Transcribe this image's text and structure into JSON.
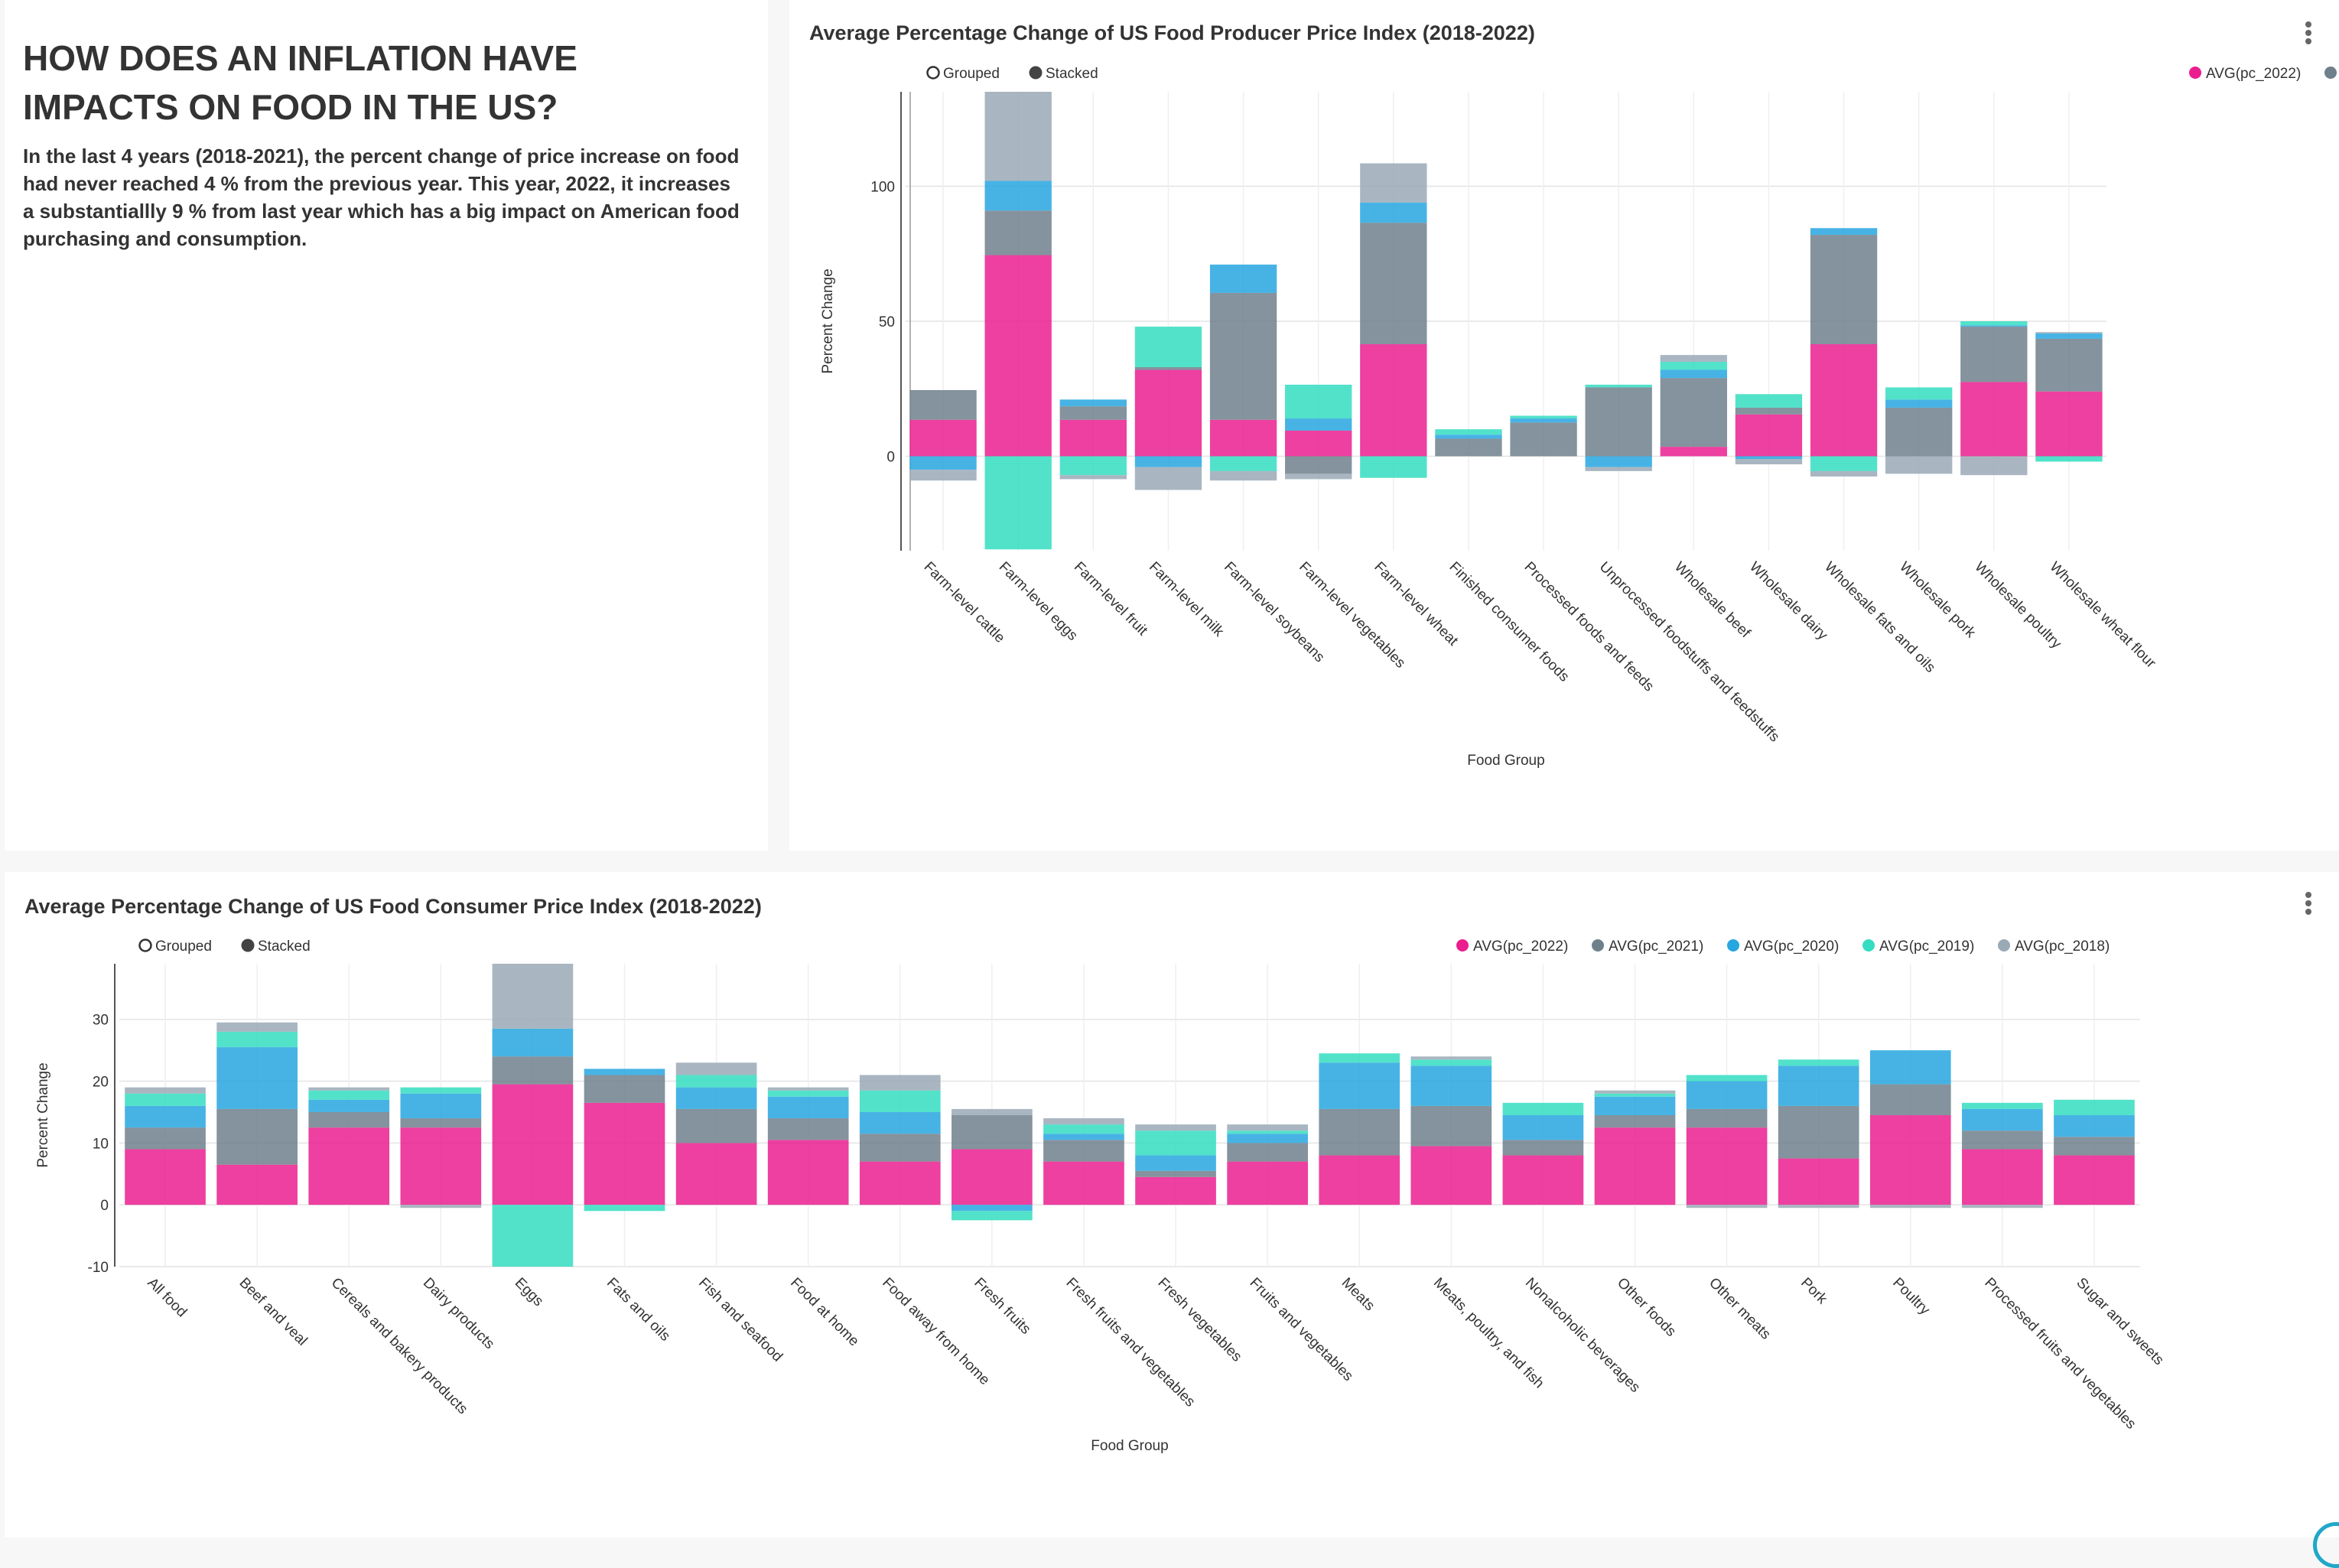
{
  "text_panel": {
    "headline": "HOW DOES AN INFLATION HAVE IMPACTS ON FOOD IN THE US?",
    "body": "In the last 4 years (2018-2021), the percent change of price increase on food had never reached 4 % from the previous year. This year, 2022, it increases a substantiallly 9 % from last year which has a big impact on American food purchasing and consumption."
  },
  "controls": {
    "grouped_label": "Grouped",
    "stacked_label": "Stacked",
    "selected": "Stacked"
  },
  "colors": {
    "pc_2022": "#ea1e8f",
    "pc_2021": "#6e808c",
    "pc_2020": "#27a6e0",
    "pc_2019": "#34ddc1",
    "pc_2018": "#9aa9b6"
  },
  "chart_data": [
    {
      "type": "bar",
      "stacked": true,
      "title": "Average Percentage Change of US Food Producer Price Index (2018-2022)",
      "xlabel": "Food Group",
      "ylabel": "Percent Change",
      "ylim": [
        -35,
        135
      ],
      "yticks": [
        0,
        50,
        100
      ],
      "grid": true,
      "legend_position": "top-right",
      "categories": [
        "Farm-level cattle",
        "Farm-level eggs",
        "Farm-level fruit",
        "Farm-level milk",
        "Farm-level soybeans",
        "Farm-level vegetables",
        "Farm-level wheat",
        "Finished consumer foods",
        "Processed foods and feeds",
        "Unprocessed foodstuffs and feedstuffs",
        "Wholesale beef",
        "Wholesale dairy",
        "Wholesale fats and oils",
        "Wholesale pork",
        "Wholesale poultry",
        "Wholesale wheat flour"
      ],
      "series": [
        {
          "name": "AVG(pc_2022)",
          "key": "pc_2022",
          "values": [
            13.5,
            74.5,
            13.5,
            32,
            13.5,
            9.5,
            41.5,
            0,
            0,
            0,
            3.5,
            15.5,
            41.5,
            0,
            27.5,
            24
          ]
        },
        {
          "name": "AVG(pc_2021)",
          "key": "pc_2021",
          "values": [
            11,
            16.5,
            5,
            1,
            47,
            -6.5,
            45,
            6.5,
            12.5,
            25.5,
            25.5,
            2.5,
            40.5,
            18,
            20.5,
            19.5
          ]
        },
        {
          "name": "AVG(pc_2020)",
          "key": "pc_2020",
          "values": [
            -5,
            11,
            2.5,
            -4,
            10.5,
            4.5,
            7.5,
            1.5,
            1.5,
            -4,
            3,
            -1,
            2.5,
            3,
            0.5,
            2
          ]
        },
        {
          "name": "AVG(pc_2019)",
          "key": "pc_2019",
          "values": [
            0,
            -34.5,
            -7,
            15,
            -5.5,
            12.5,
            -8,
            2,
            1,
            1,
            3,
            5,
            -5.5,
            4.5,
            1.5,
            -2
          ]
        },
        {
          "name": "AVG(pc_2018)",
          "key": "pc_2018",
          "values": [
            -4,
            36.5,
            -1.5,
            -8.5,
            -3.5,
            -2,
            14.5,
            0,
            0,
            -1.5,
            2.5,
            -2,
            -2,
            -6.5,
            -7,
            0.5
          ]
        }
      ]
    },
    {
      "type": "bar",
      "stacked": true,
      "title": "Average Percentage Change of US Food Consumer Price Index (2018-2022)",
      "xlabel": "Food Group",
      "ylabel": "Percent Change",
      "ylim": [
        -10,
        39
      ],
      "yticks": [
        -10,
        0,
        10,
        20,
        30
      ],
      "grid": true,
      "legend_position": "top-right",
      "categories": [
        "All food",
        "Beef and veal",
        "Cereals and bakery products",
        "Dairy products",
        "Eggs",
        "Fats and oils",
        "Fish and seafood",
        "Food at home",
        "Food away from home",
        "Fresh fruits",
        "Fresh fruits and vegetables",
        "Fresh vegetables",
        "Fruits and vegetables",
        "Meats",
        "Meats, poultry, and fish",
        "Nonalcoholic beverages",
        "Other foods",
        "Other meats",
        "Pork",
        "Poultry",
        "Processed fruits and vegetables",
        "Sugar and sweets"
      ],
      "series": [
        {
          "name": "AVG(pc_2022)",
          "key": "pc_2022",
          "values": [
            9,
            6.5,
            12.5,
            12.5,
            19.5,
            16.5,
            10,
            10.5,
            7,
            9,
            7,
            4.5,
            7,
            8,
            9.5,
            8,
            12.5,
            12.5,
            7.5,
            14.5,
            9,
            8
          ]
        },
        {
          "name": "AVG(pc_2021)",
          "key": "pc_2021",
          "values": [
            3.5,
            9,
            2.5,
            1.5,
            4.5,
            4.5,
            5.5,
            3.5,
            4.5,
            5.5,
            3.5,
            1,
            3,
            7.5,
            6.5,
            2.5,
            2,
            3,
            8.5,
            5,
            3,
            3
          ]
        },
        {
          "name": "AVG(pc_2020)",
          "key": "pc_2020",
          "values": [
            3.5,
            10,
            2,
            4,
            4.5,
            1,
            3.5,
            3.5,
            3.5,
            -1,
            1,
            2.5,
            1.5,
            7.5,
            6.5,
            4,
            3,
            4.5,
            6.5,
            5.5,
            3.5,
            3.5
          ]
        },
        {
          "name": "AVG(pc_2019)",
          "key": "pc_2019",
          "values": [
            2,
            2.5,
            1.5,
            1,
            -10.5,
            -1,
            2,
            1,
            3.5,
            -1.5,
            1.5,
            4,
            0.5,
            1.5,
            1,
            2,
            0.5,
            1,
            1,
            0,
            1,
            2.5
          ]
        },
        {
          "name": "AVG(pc_2018)",
          "key": "pc_2018",
          "values": [
            1,
            1.5,
            0.5,
            -0.5,
            11.5,
            0,
            2,
            0.5,
            2.5,
            1,
            1,
            1,
            1,
            0,
            0.5,
            0,
            0.5,
            -0.5,
            -0.5,
            -0.5,
            -0.5,
            0
          ]
        }
      ]
    }
  ]
}
